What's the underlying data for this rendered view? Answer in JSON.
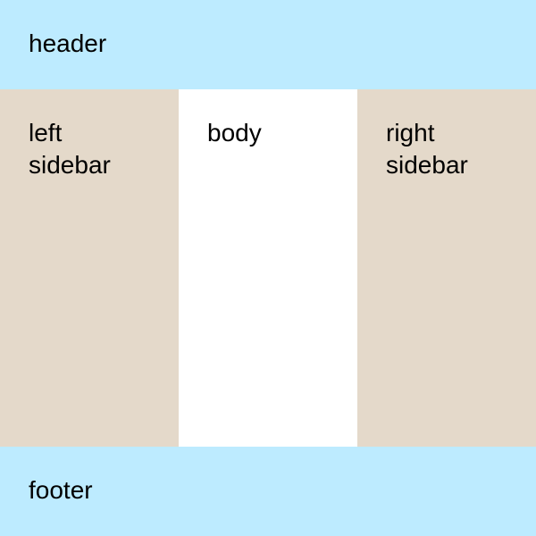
{
  "regions": {
    "header": {
      "label": "header"
    },
    "left_sidebar": {
      "line1": "left",
      "line2": "sidebar"
    },
    "body": {
      "label": "body"
    },
    "right_sidebar": {
      "line1": "right",
      "line2": "sidebar"
    },
    "footer": {
      "label": "footer"
    }
  },
  "colors": {
    "header_footer_bg": "#bdebff",
    "sidebar_bg": "#e4d9ca",
    "body_bg": "#ffffff",
    "text": "#000000"
  }
}
